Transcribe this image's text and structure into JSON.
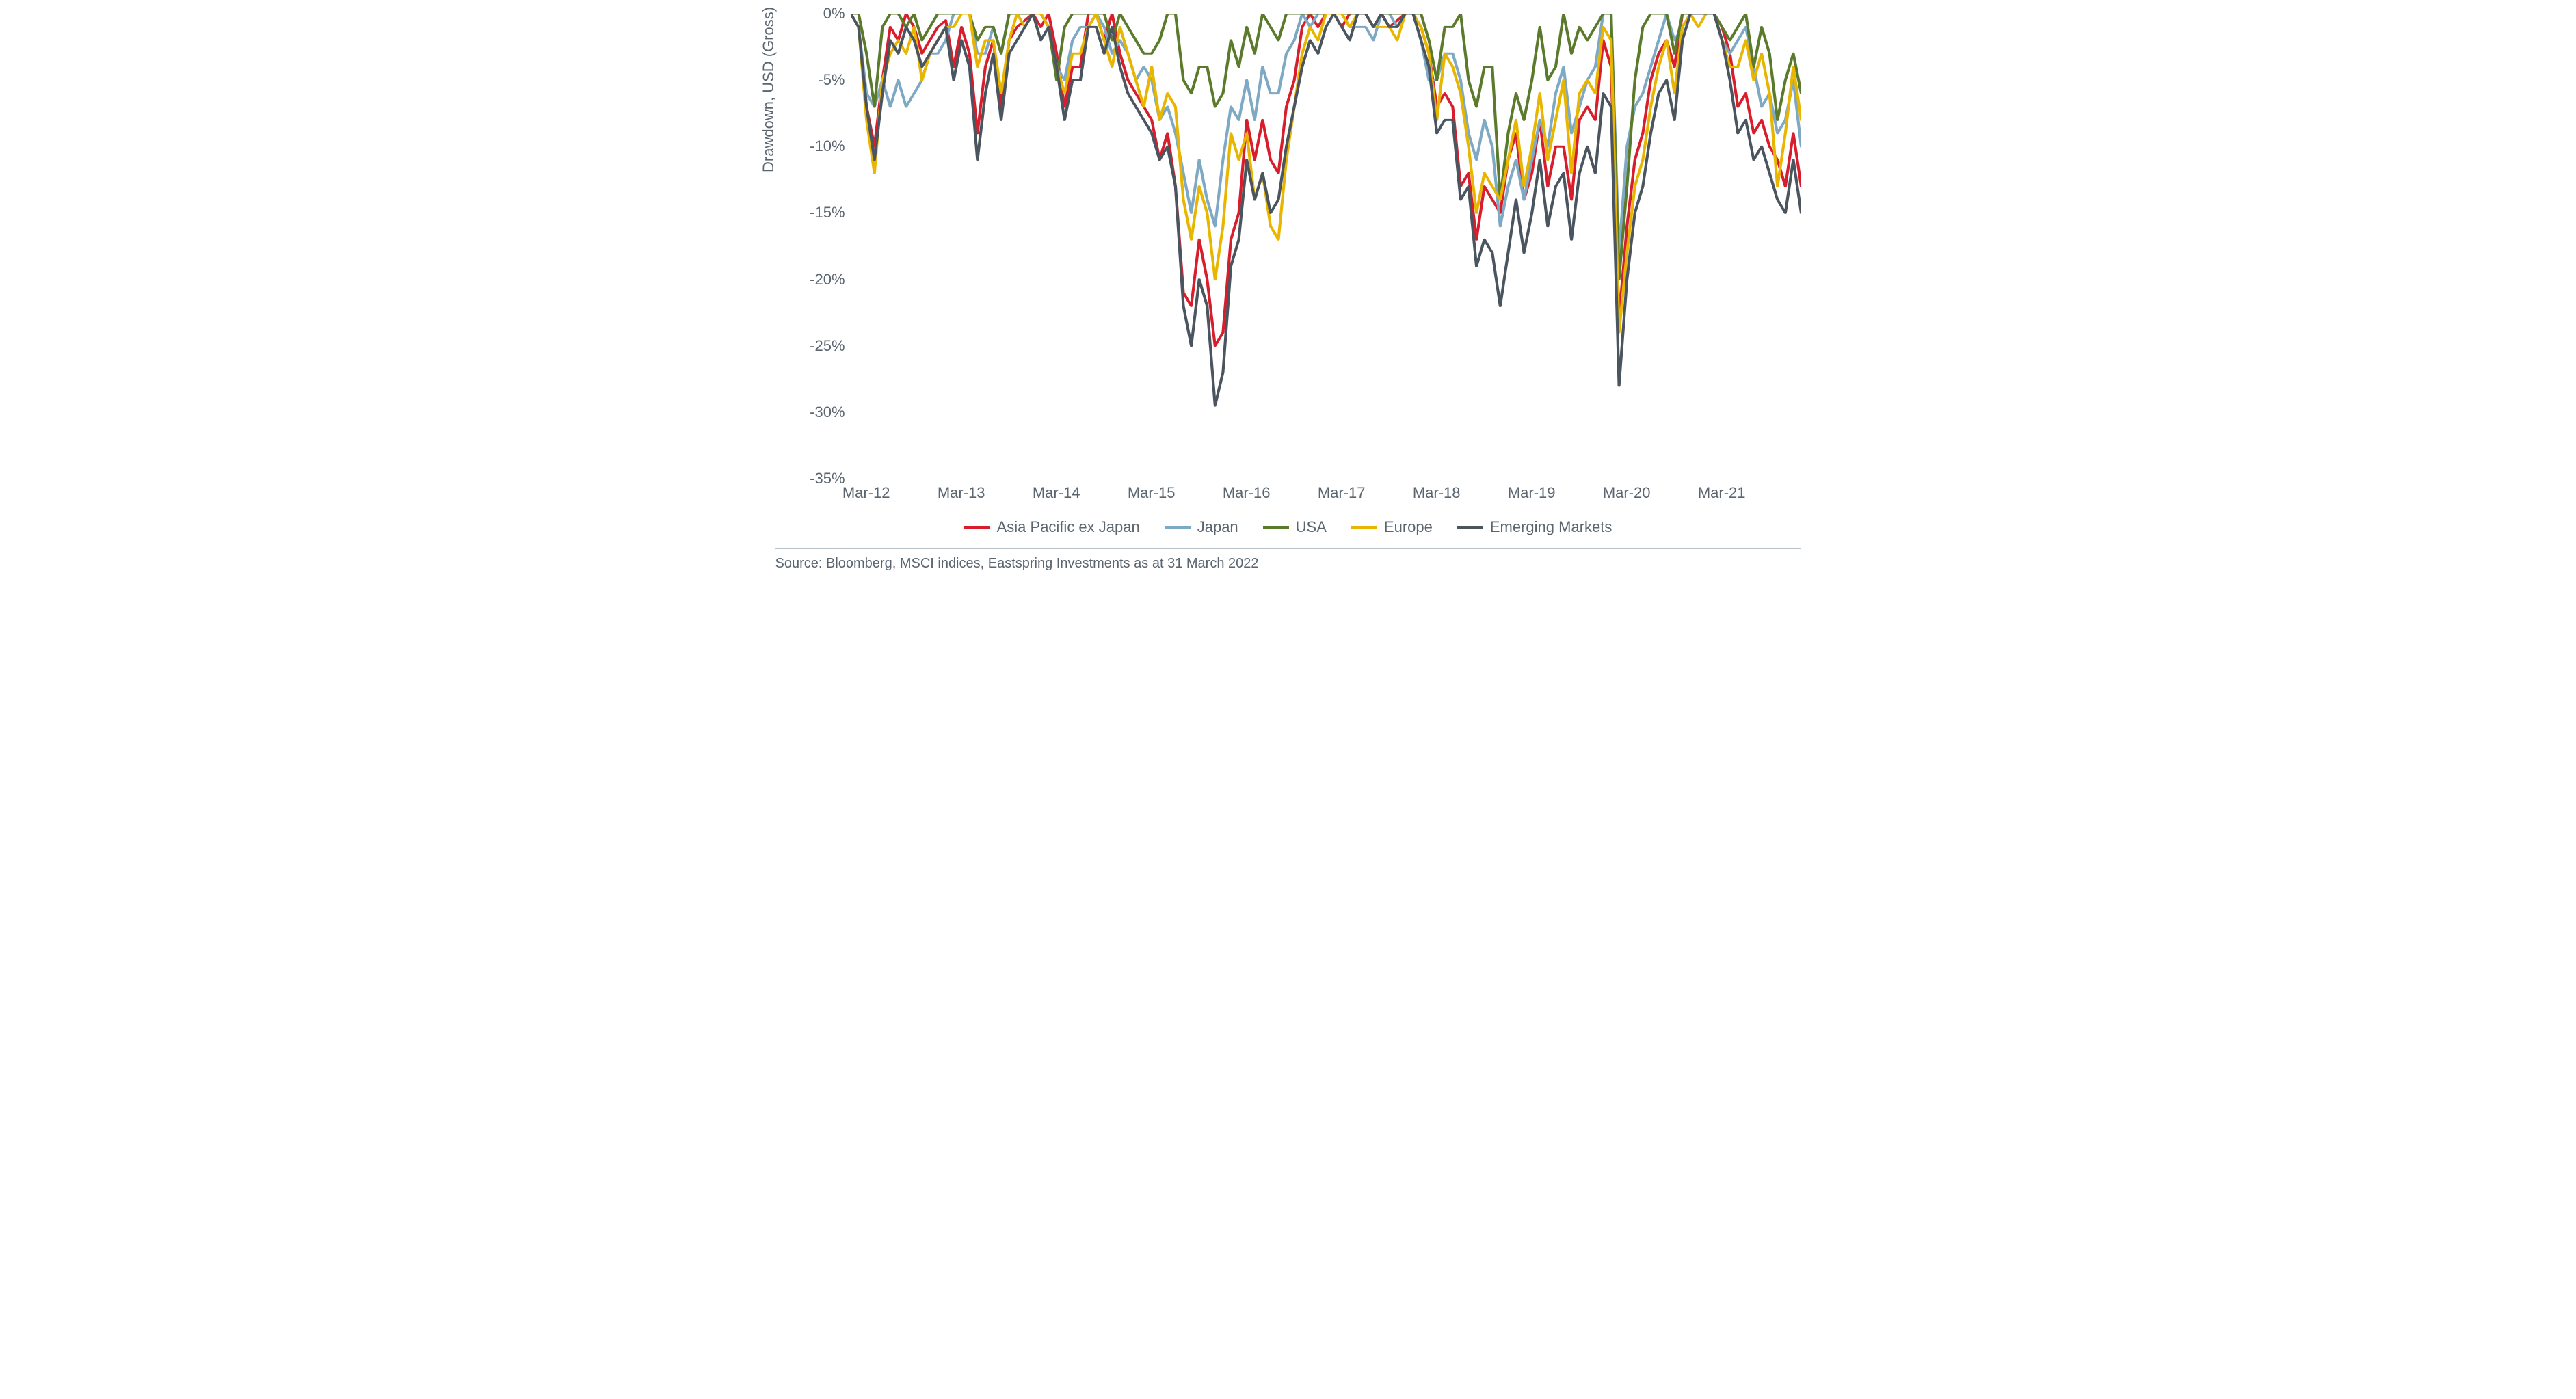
{
  "chart": {
    "type": "line",
    "y_axis_label": "Drawdown, USD (Gross)",
    "background_color": "#ffffff",
    "axis_color": "#7a8590",
    "text_color": "#5a6570",
    "label_fontsize": 22,
    "line_width": 3,
    "ylim": [
      -35,
      0
    ],
    "ytick_step": 5,
    "y_ticks": [
      {
        "v": 0,
        "label": "0%"
      },
      {
        "v": -5,
        "label": "-5%"
      },
      {
        "v": -10,
        "label": "-10%"
      },
      {
        "v": -15,
        "label": "-15%"
      },
      {
        "v": -20,
        "label": "-20%"
      },
      {
        "v": -25,
        "label": "-25%"
      },
      {
        "v": -30,
        "label": "-30%"
      },
      {
        "v": -35,
        "label": "-35%"
      }
    ],
    "x_domain": [
      0,
      120
    ],
    "x_ticks": [
      {
        "x": 2,
        "label": "Mar-12"
      },
      {
        "x": 14,
        "label": "Mar-13"
      },
      {
        "x": 26,
        "label": "Mar-14"
      },
      {
        "x": 38,
        "label": "Mar-15"
      },
      {
        "x": 50,
        "label": "Mar-16"
      },
      {
        "x": 62,
        "label": "Mar-17"
      },
      {
        "x": 74,
        "label": "Mar-18"
      },
      {
        "x": 86,
        "label": "Mar-19"
      },
      {
        "x": 98,
        "label": "Mar-20"
      },
      {
        "x": 110,
        "label": "Mar-21"
      }
    ],
    "series": [
      {
        "name": "Asia Pacific ex Japan",
        "color": "#d81e2c",
        "y": [
          0,
          -1,
          -7,
          -10,
          -5,
          -1,
          -2,
          0,
          -1,
          -3,
          -2,
          -1,
          -0.5,
          -4,
          -1,
          -3,
          -9,
          -4,
          -2,
          -7,
          -2,
          -1,
          -0.5,
          0,
          -1,
          0,
          -3,
          -7,
          -4,
          -4,
          0,
          0,
          -2,
          0,
          -3,
          -5,
          -6,
          -7,
          -8,
          -11,
          -9,
          -13,
          -21,
          -22,
          -17,
          -20,
          -25,
          -24,
          -17,
          -15,
          -8,
          -11,
          -8,
          -11,
          -12,
          -7,
          -5,
          -1,
          0,
          -1,
          0,
          0,
          -1,
          0,
          0,
          0,
          -1,
          0,
          -1,
          -0.5,
          0,
          0,
          -1,
          -3,
          -7,
          -6,
          -7,
          -13,
          -12,
          -17,
          -13,
          -14,
          -15,
          -11,
          -9,
          -14,
          -12,
          -8,
          -13,
          -10,
          -10,
          -14,
          -8,
          -7,
          -8,
          -2,
          -4,
          -23,
          -16,
          -11,
          -9,
          -5,
          -3,
          -2,
          -4,
          0,
          0,
          0,
          0,
          0,
          -1,
          -3,
          -7,
          -6,
          -9,
          -8,
          -10,
          -11,
          -13,
          -9,
          -13
        ]
      },
      {
        "name": "Japan",
        "color": "#7ea9c4",
        "y": [
          0,
          -1,
          -6,
          -7,
          -5,
          -7,
          -5,
          -7,
          -6,
          -5,
          -3,
          -3,
          -2,
          0,
          0,
          0,
          -3,
          -3,
          -1,
          -3,
          0,
          0,
          0,
          0,
          0,
          -1,
          -4,
          -5,
          -2,
          -1,
          -1,
          0,
          -1,
          -3,
          -2,
          -3,
          -5,
          -4,
          -5,
          -8,
          -7,
          -9,
          -12,
          -15,
          -11,
          -14,
          -16,
          -11,
          -7,
          -8,
          -5,
          -8,
          -4,
          -6,
          -6,
          -3,
          -2,
          0,
          -1,
          0,
          0,
          0,
          0,
          -1,
          -1,
          -1,
          -2,
          0,
          0,
          -1,
          0,
          0,
          -2,
          -5,
          -5,
          -3,
          -3,
          -5,
          -9,
          -11,
          -8,
          -10,
          -16,
          -13,
          -11,
          -14,
          -11,
          -8,
          -10,
          -6,
          -4,
          -9,
          -7,
          -5,
          -4,
          0,
          0,
          -18,
          -10,
          -7,
          -6,
          -4,
          -2,
          0,
          -2,
          -1,
          0,
          0,
          0,
          0,
          -2,
          -3,
          -2,
          -1,
          -4,
          -7,
          -6,
          -9,
          -8,
          -5,
          -10
        ]
      },
      {
        "name": "USA",
        "color": "#5b7a2b",
        "y": [
          0,
          0,
          -3,
          -7,
          -1,
          0,
          0,
          -1,
          0,
          -2,
          -1,
          0,
          0,
          0,
          0,
          0,
          -2,
          -1,
          -1,
          -3,
          0,
          0,
          0,
          0,
          0,
          -1,
          -5,
          -1,
          0,
          0,
          0,
          0,
          0,
          -2,
          0,
          -1,
          -2,
          -3,
          -3,
          -2,
          0,
          0,
          -5,
          -6,
          -4,
          -4,
          -7,
          -6,
          -2,
          -4,
          -1,
          -3,
          0,
          -1,
          -2,
          0,
          0,
          0,
          0,
          0,
          0,
          0,
          0,
          0,
          0,
          0,
          -1,
          0,
          0,
          0,
          0,
          0,
          0,
          -2,
          -5,
          -1,
          -1,
          0,
          -5,
          -7,
          -4,
          -4,
          -14,
          -9,
          -6,
          -8,
          -5,
          -1,
          -5,
          -4,
          0,
          -3,
          -1,
          -2,
          -1,
          0,
          0,
          -20,
          -13,
          -5,
          -1,
          0,
          0,
          0,
          -3,
          0,
          0,
          0,
          0,
          0,
          -1,
          -2,
          -1,
          0,
          -4,
          -1,
          -3,
          -8,
          -5,
          -3,
          -6
        ]
      },
      {
        "name": "Europe",
        "color": "#e8b600",
        "y": [
          0,
          -1,
          -8,
          -12,
          -5,
          -3,
          -2,
          -3,
          -1,
          -5,
          -3,
          -2,
          -1,
          -1,
          0,
          0,
          -4,
          -2,
          -2,
          -6,
          -2,
          0,
          -1,
          0,
          0,
          -1,
          -4,
          -6,
          -3,
          -3,
          -1,
          0,
          -2,
          -4,
          -1,
          -3,
          -5,
          -7,
          -4,
          -8,
          -6,
          -7,
          -14,
          -17,
          -13,
          -15,
          -20,
          -16,
          -9,
          -11,
          -9,
          -14,
          -12,
          -16,
          -17,
          -11,
          -7,
          -3,
          -1,
          -2,
          0,
          0,
          0,
          -1,
          0,
          0,
          -1,
          -1,
          -1,
          -2,
          0,
          0,
          -1,
          -3,
          -8,
          -3,
          -4,
          -6,
          -10,
          -15,
          -12,
          -13,
          -14,
          -11,
          -8,
          -13,
          -10,
          -6,
          -11,
          -8,
          -5,
          -12,
          -6,
          -5,
          -6,
          -1,
          -2,
          -24,
          -18,
          -13,
          -11,
          -7,
          -4,
          -2,
          -6,
          -1,
          0,
          -1,
          0,
          0,
          -2,
          -4,
          -4,
          -2,
          -5,
          -3,
          -6,
          -13,
          -9,
          -4,
          -8
        ]
      },
      {
        "name": "Emerging Markets",
        "color": "#4a5560",
        "y": [
          0,
          -1,
          -7,
          -11,
          -6,
          -2,
          -3,
          -1,
          -2,
          -4,
          -3,
          -2,
          -1,
          -5,
          -2,
          -4,
          -11,
          -6,
          -3,
          -8,
          -3,
          -2,
          -1,
          0,
          -2,
          -1,
          -4,
          -8,
          -5,
          -5,
          -1,
          -1,
          -3,
          -1,
          -4,
          -6,
          -7,
          -8,
          -9,
          -11,
          -10,
          -13,
          -22,
          -25,
          -20,
          -22,
          -29.5,
          -27,
          -19,
          -17,
          -11,
          -14,
          -12,
          -15,
          -14,
          -10,
          -7,
          -4,
          -2,
          -3,
          -1,
          0,
          -1,
          -2,
          0,
          0,
          -1,
          0,
          -1,
          -1,
          0,
          0,
          -2,
          -4,
          -9,
          -8,
          -8,
          -14,
          -13,
          -19,
          -17,
          -18,
          -22,
          -18,
          -14,
          -18,
          -15,
          -11,
          -16,
          -13,
          -12,
          -17,
          -12,
          -10,
          -12,
          -6,
          -7,
          -28,
          -20,
          -15,
          -13,
          -9,
          -6,
          -5,
          -8,
          -2,
          0,
          0,
          0,
          0,
          -2,
          -5,
          -9,
          -8,
          -11,
          -10,
          -12,
          -14,
          -15,
          -11,
          -15
        ]
      }
    ]
  },
  "legend": {
    "items": [
      {
        "label": "Asia Pacific ex Japan",
        "color": "#d81e2c"
      },
      {
        "label": "Japan",
        "color": "#7ea9c4"
      },
      {
        "label": "USA",
        "color": "#5b7a2b"
      },
      {
        "label": "Europe",
        "color": "#e8b600"
      },
      {
        "label": "Emerging Markets",
        "color": "#4a5560"
      }
    ]
  },
  "source": "Source: Bloomberg, MSCI indices, Eastspring Investments as at 31 March 2022"
}
